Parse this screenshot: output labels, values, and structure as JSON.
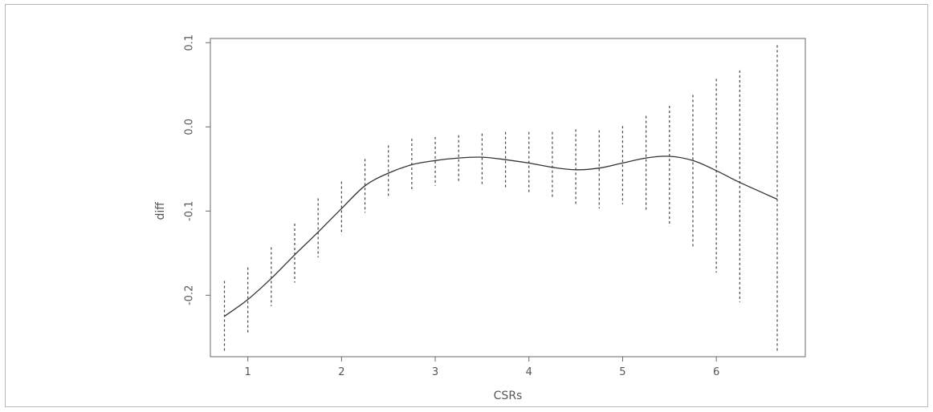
{
  "chart_data": {
    "type": "line",
    "xlabel": "CSRs",
    "ylabel": "diff",
    "xlim": [
      0.6,
      6.95
    ],
    "ylim": [
      -0.273,
      0.105
    ],
    "x_ticks": [
      1,
      2,
      3,
      4,
      5,
      6
    ],
    "x_tick_labels": [
      "1",
      "2",
      "3",
      "4",
      "5",
      "6"
    ],
    "y_ticks": [
      -0.2,
      -0.1,
      0.0,
      0.1
    ],
    "y_tick_labels": [
      "-0.2",
      "-0.1",
      "0.0",
      "0.1"
    ],
    "grid": false,
    "series": [
      {
        "style": "solid",
        "x": [
          0.75,
          1.0,
          1.25,
          1.5,
          1.75,
          2.0,
          2.25,
          2.5,
          2.75,
          3.0,
          3.25,
          3.5,
          3.75,
          4.0,
          4.25,
          4.5,
          4.75,
          5.0,
          5.25,
          5.5,
          5.75,
          6.0,
          6.25,
          6.65
        ],
        "y": [
          -0.225,
          -0.205,
          -0.18,
          -0.152,
          -0.125,
          -0.097,
          -0.07,
          -0.055,
          -0.045,
          -0.04,
          -0.037,
          -0.036,
          -0.039,
          -0.043,
          -0.048,
          -0.051,
          -0.049,
          -0.043,
          -0.037,
          -0.035,
          -0.04,
          -0.052,
          -0.066,
          -0.086
        ]
      }
    ],
    "error_bars": {
      "style": "dashed",
      "x": [
        0.75,
        1.0,
        1.25,
        1.5,
        1.75,
        2.0,
        2.25,
        2.5,
        2.75,
        3.0,
        3.25,
        3.5,
        3.75,
        4.0,
        4.25,
        4.5,
        4.75,
        5.0,
        5.25,
        5.5,
        5.75,
        6.0,
        6.25,
        6.65
      ],
      "lower": [
        -0.268,
        -0.245,
        -0.213,
        -0.185,
        -0.155,
        -0.128,
        -0.102,
        -0.085,
        -0.075,
        -0.07,
        -0.065,
        -0.068,
        -0.073,
        -0.08,
        -0.085,
        -0.093,
        -0.097,
        -0.092,
        -0.1,
        -0.118,
        -0.143,
        -0.173,
        -0.208,
        -0.268
      ],
      "upper": [
        -0.183,
        -0.167,
        -0.143,
        -0.115,
        -0.085,
        -0.065,
        -0.038,
        -0.022,
        -0.014,
        -0.012,
        -0.01,
        -0.008,
        -0.006,
        -0.006,
        -0.006,
        -0.003,
        -0.004,
        0.001,
        0.013,
        0.025,
        0.038,
        0.057,
        0.067,
        0.097
      ]
    }
  }
}
